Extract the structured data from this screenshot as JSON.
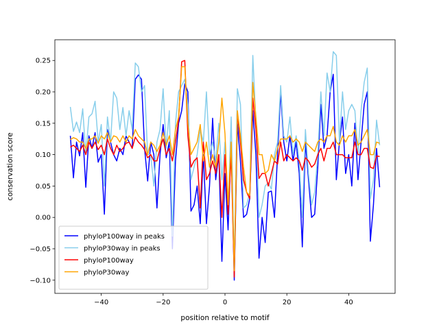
{
  "chart_data": {
    "type": "line",
    "xlabel": "position relative to motif",
    "ylabel": "conservation score",
    "x": [
      -50,
      -49,
      -48,
      -47,
      -46,
      -45,
      -44,
      -43,
      -42,
      -41,
      -40,
      -39,
      -38,
      -37,
      -36,
      -35,
      -34,
      -33,
      -32,
      -31,
      -30,
      -29,
      -28,
      -27,
      -26,
      -25,
      -24,
      -23,
      -22,
      -21,
      -20,
      -19,
      -18,
      -17,
      -16,
      -15,
      -14,
      -13,
      -12,
      -11,
      -10,
      -9,
      -8,
      -7,
      -6,
      -5,
      -4,
      -3,
      -2,
      -1,
      0,
      1,
      2,
      3,
      4,
      5,
      6,
      7,
      8,
      9,
      10,
      11,
      12,
      13,
      14,
      15,
      16,
      17,
      18,
      19,
      20,
      21,
      22,
      23,
      24,
      25,
      26,
      27,
      28,
      29,
      30,
      31,
      32,
      33,
      34,
      35,
      36,
      37,
      38,
      39,
      40,
      41,
      42,
      43,
      44,
      45,
      46,
      47,
      48,
      49,
      50
    ],
    "series": [
      {
        "name": "phyloP100way in peaks",
        "color": "#0000ff",
        "values": [
          0.13,
          0.063,
          0.12,
          0.098,
          0.135,
          0.048,
          0.13,
          0.11,
          0.135,
          0.088,
          0.1,
          0.005,
          0.14,
          0.12,
          0.1,
          0.09,
          0.11,
          0.1,
          0.13,
          0.12,
          0.11,
          0.22,
          0.227,
          0.22,
          0.11,
          0.058,
          0.12,
          0.1,
          0.015,
          0.1,
          0.148,
          0.095,
          0.12,
          -0.05,
          0.09,
          0.15,
          0.17,
          0.213,
          0.2,
          0.01,
          0.02,
          0.05,
          -0.01,
          0.1,
          -0.01,
          0.05,
          0.158,
          0.06,
          0.1,
          -0.07,
          0.07,
          -0.02,
          0.12,
          -0.1,
          0.15,
          0.09,
          0.0,
          0.005,
          0.03,
          0.17,
          0.1,
          -0.065,
          0.0,
          -0.04,
          0.04,
          0.042,
          0.0,
          0.1,
          0.2,
          0.12,
          0.09,
          0.13,
          0.09,
          0.12,
          0.07,
          -0.047,
          0.12,
          0.06,
          0.0,
          0.005,
          0.08,
          0.18,
          0.11,
          0.13,
          0.2,
          0.228,
          0.06,
          0.12,
          0.16,
          0.07,
          0.1,
          0.05,
          0.15,
          0.06,
          0.12,
          0.18,
          0.2,
          -0.038,
          0.02,
          0.11,
          0.048
        ]
      },
      {
        "name": "phyloP30way in peaks",
        "color": "#87ceeb",
        "values": [
          0.176,
          0.137,
          0.152,
          0.135,
          0.173,
          0.1,
          0.16,
          0.165,
          0.185,
          0.12,
          0.148,
          0.05,
          0.16,
          0.12,
          0.2,
          0.19,
          0.14,
          0.175,
          0.13,
          0.17,
          0.14,
          0.246,
          0.24,
          0.2,
          0.21,
          0.1,
          0.1,
          0.05,
          0.12,
          0.14,
          0.205,
          0.11,
          0.17,
          -0.03,
          0.15,
          0.2,
          0.21,
          0.22,
          0.18,
          0.06,
          0.08,
          0.1,
          0.14,
          0.12,
          0.2,
          0.1,
          0.12,
          0.09,
          0.15,
          0.06,
          0.12,
          0.01,
          0.16,
          -0.08,
          0.205,
          0.18,
          0.015,
          0.02,
          0.04,
          0.258,
          0.15,
          0.0,
          0.02,
          0.05,
          0.055,
          0.045,
          0.1,
          0.12,
          0.21,
          0.13,
          0.12,
          0.16,
          0.1,
          0.13,
          0.09,
          0.0,
          0.14,
          0.07,
          0.02,
          0.04,
          0.1,
          0.2,
          0.13,
          0.23,
          0.2,
          0.264,
          0.258,
          0.12,
          0.2,
          0.14,
          0.17,
          0.18,
          0.17,
          0.1,
          0.17,
          0.215,
          0.238,
          0.03,
          0.06,
          0.155,
          0.115
        ]
      },
      {
        "name": "phyloP100way",
        "color": "#ff0000",
        "values": [
          0.112,
          0.115,
          0.11,
          0.105,
          0.115,
          0.1,
          0.12,
          0.11,
          0.12,
          0.108,
          0.115,
          0.1,
          0.125,
          0.11,
          0.1,
          0.115,
          0.105,
          0.11,
          0.118,
          0.12,
          0.11,
          0.128,
          0.12,
          0.115,
          0.108,
          0.095,
          0.1,
          0.09,
          0.09,
          0.11,
          0.125,
          0.1,
          0.11,
          0.09,
          0.12,
          0.155,
          0.248,
          0.25,
          0.13,
          0.08,
          0.09,
          0.095,
          0.015,
          0.12,
          0.06,
          0.07,
          0.09,
          0.07,
          0.1,
          0.0,
          0.1,
          0.005,
          0.1,
          -0.095,
          0.165,
          0.12,
          0.06,
          0.04,
          0.03,
          0.19,
          0.14,
          0.062,
          0.07,
          0.07,
          0.05,
          0.07,
          0.09,
          0.085,
          0.12,
          0.09,
          0.1,
          0.095,
          0.09,
          0.095,
          0.09,
          0.075,
          0.095,
          0.09,
          0.08,
          0.085,
          0.1,
          0.11,
          0.09,
          0.11,
          0.11,
          0.12,
          0.1,
          0.1,
          0.1,
          0.095,
          0.095,
          0.095,
          0.12,
          0.1,
          0.1,
          0.11,
          0.11,
          0.08,
          0.078,
          0.098,
          0.097
        ]
      },
      {
        "name": "phyloP30way",
        "color": "#ffa500",
        "values": [
          0.124,
          0.127,
          0.125,
          0.12,
          0.12,
          0.11,
          0.125,
          0.125,
          0.13,
          0.118,
          0.13,
          0.125,
          0.135,
          0.12,
          0.13,
          0.128,
          0.12,
          0.13,
          0.12,
          0.13,
          0.125,
          0.14,
          0.13,
          0.125,
          0.12,
          0.1,
          0.12,
          0.115,
          0.105,
          0.115,
          0.135,
          0.115,
          0.13,
          0.1,
          0.14,
          0.16,
          0.24,
          0.24,
          0.15,
          0.1,
          0.11,
          0.12,
          0.148,
          0.09,
          0.12,
          0.08,
          0.1,
          0.08,
          0.12,
          0.19,
          0.133,
          0.02,
          0.12,
          -0.085,
          0.17,
          0.13,
          0.08,
          0.04,
          0.035,
          0.215,
          0.16,
          0.1,
          0.1,
          0.07,
          0.075,
          0.1,
          0.09,
          0.11,
          0.125,
          0.125,
          0.125,
          0.13,
          0.12,
          0.125,
          0.12,
          0.105,
          0.12,
          0.115,
          0.11,
          0.105,
          0.12,
          0.125,
          0.12,
          0.13,
          0.13,
          0.145,
          0.12,
          0.115,
          0.13,
          0.12,
          0.13,
          0.13,
          0.14,
          0.115,
          0.12,
          0.13,
          0.14,
          0.1,
          0.1,
          0.12,
          0.118
        ]
      }
    ],
    "xlim": [
      -55,
      55
    ],
    "ylim": [
      -0.121,
      0.283
    ],
    "xticks": [
      {
        "value": -40,
        "label": "−40"
      },
      {
        "value": -20,
        "label": "−20"
      },
      0,
      20,
      40
    ],
    "yticks": [
      {
        "value": -0.1,
        "label": "−0.10"
      },
      {
        "value": -0.05,
        "label": "−0.05"
      },
      {
        "value": 0,
        "label": "0.00"
      },
      0.05,
      {
        "value": 0.1,
        "label": "0.10"
      },
      0.15,
      {
        "value": 0.2,
        "label": "0.20"
      },
      0.25
    ],
    "legend": "lower left",
    "grid": false
  }
}
